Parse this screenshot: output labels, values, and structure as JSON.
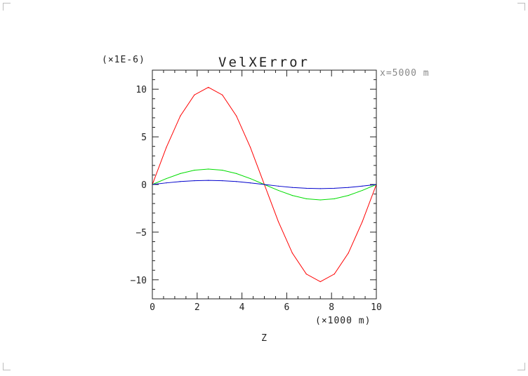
{
  "chart_data": {
    "type": "line",
    "title": "VelXError",
    "xlabel": "Z",
    "x_scale_label": "(×1000 m)",
    "y_scale_label": "(×1E-6)",
    "annotation": "x=5000 m",
    "xlim": [
      0,
      10
    ],
    "ylim": [
      -12,
      12
    ],
    "x_ticks": [
      0,
      2,
      4,
      6,
      8,
      10
    ],
    "y_ticks": [
      -10,
      -5,
      0,
      5,
      10
    ],
    "x_tick_labels": [
      "0",
      "2",
      "4",
      "6",
      "8",
      "10"
    ],
    "y_tick_labels": [
      "−10",
      "−5",
      "0",
      "5",
      "10"
    ],
    "grid": false,
    "x": [
      0,
      0.625,
      1.25,
      1.875,
      2.5,
      3.125,
      3.75,
      4.375,
      5.0,
      5.625,
      6.25,
      6.875,
      7.5,
      8.125,
      8.75,
      9.375,
      10.0
    ],
    "series": [
      {
        "color": "#ff0000",
        "values": [
          0,
          3.9,
          7.2,
          9.4,
          10.2,
          9.4,
          7.2,
          3.9,
          0,
          -3.9,
          -7.2,
          -9.4,
          -10.2,
          -9.4,
          -7.2,
          -3.9,
          0
        ]
      },
      {
        "color": "#00dd00",
        "values": [
          0,
          0.62,
          1.15,
          1.5,
          1.62,
          1.5,
          1.15,
          0.62,
          0,
          -0.62,
          -1.15,
          -1.5,
          -1.62,
          -1.5,
          -1.15,
          -0.62,
          0
        ]
      },
      {
        "color": "#0000cc",
        "values": [
          0,
          0.17,
          0.31,
          0.4,
          0.43,
          0.4,
          0.31,
          0.17,
          0,
          -0.17,
          -0.31,
          -0.4,
          -0.43,
          -0.4,
          -0.31,
          -0.17,
          0
        ]
      }
    ]
  }
}
